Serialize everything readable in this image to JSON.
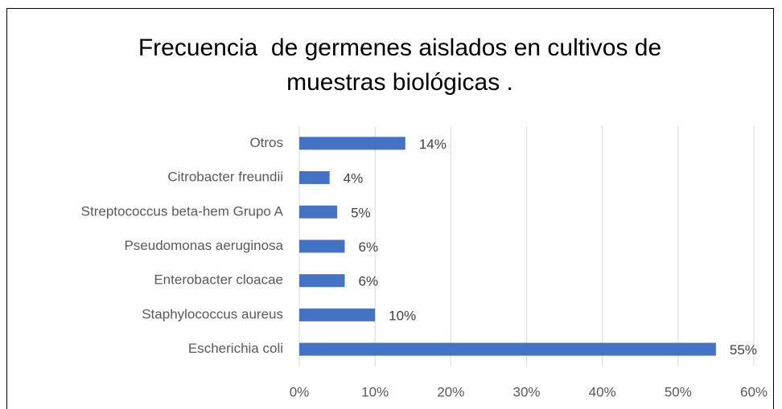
{
  "chart_data": {
    "type": "barh",
    "title": "Frecuencia  de germenes aislados en cultivos de muestras biológicas .",
    "categories": [
      "Escherichia coli",
      "Staphylococcus aureus",
      "Enterobacter cloacae",
      "Pseudomonas aeruginosa",
      "Streptococcus beta-hem Grupo A",
      "Citrobacter freundii",
      "Otros"
    ],
    "values": [
      55,
      10,
      6,
      6,
      5,
      4,
      14
    ],
    "value_labels": [
      "55%",
      "10%",
      "6%",
      "6%",
      "5%",
      "4%",
      "14%"
    ],
    "color": "#4472c4",
    "xlim": [
      0,
      60
    ],
    "xticks": [
      {
        "value": 0,
        "label": "0%"
      },
      {
        "value": 10,
        "label": "10%"
      },
      {
        "value": 20,
        "label": "20%"
      },
      {
        "value": 30,
        "label": "30%"
      },
      {
        "value": 40,
        "label": "40%"
      },
      {
        "value": 50,
        "label": "50%"
      },
      {
        "value": 60,
        "label": "60%"
      }
    ],
    "grid": true
  }
}
